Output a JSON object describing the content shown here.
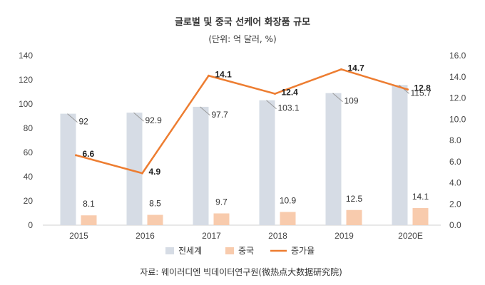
{
  "chart_data": {
    "type": "bar",
    "title": "글로벌 및 중국 선케어 화장품 규모",
    "subtitle": "(단위: 억 달러, %)",
    "categories": [
      "2015",
      "2016",
      "2017",
      "2018",
      "2019",
      "2020E"
    ],
    "series": [
      {
        "name": "전세계",
        "type": "bar",
        "axis": "left",
        "color": "#d6dce5",
        "values": [
          92,
          92.9,
          97.7,
          103.1,
          109,
          115.7
        ],
        "labels": [
          "92",
          "92.9",
          "97.7",
          "103.1",
          "109",
          "115.7"
        ]
      },
      {
        "name": "중국",
        "type": "bar",
        "axis": "left",
        "color": "#f8cbad",
        "values": [
          8.1,
          8.5,
          9.7,
          10.9,
          12.5,
          14.1
        ],
        "labels": [
          "8.1",
          "8.5",
          "9.7",
          "10.9",
          "12.5",
          "14.1"
        ]
      },
      {
        "name": "증가율",
        "type": "line",
        "axis": "right",
        "color": "#ed7d31",
        "values": [
          6.6,
          4.9,
          14.1,
          12.4,
          14.7,
          12.8
        ],
        "labels": [
          "6.6",
          "4.9",
          "14.1",
          "12.4",
          "14.7",
          "12.8"
        ]
      }
    ],
    "y_left": {
      "min": 0,
      "max": 140,
      "ticks": [
        "0",
        "20",
        "40",
        "60",
        "80",
        "100",
        "120",
        "140"
      ]
    },
    "y_right": {
      "min": 0,
      "max": 16,
      "ticks": [
        "0.0",
        "2.0",
        "4.0",
        "6.0",
        "8.0",
        "10.0",
        "12.0",
        "14.0",
        "16.0"
      ]
    },
    "grid": false,
    "legend": "bottom"
  },
  "source": "자료: 웨이러디엔 빅데이터연구원(微热点大数据研究院)"
}
